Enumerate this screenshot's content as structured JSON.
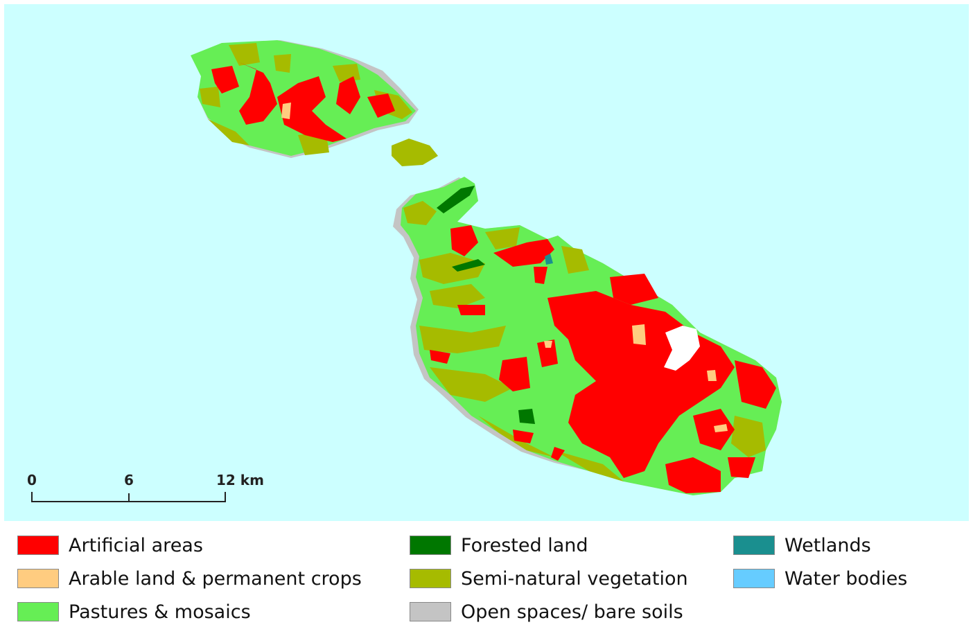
{
  "scale": {
    "ticks": [
      "0",
      "6",
      "12 km"
    ]
  },
  "legend": [
    {
      "label": "Artificial areas",
      "color": "#ff0000"
    },
    {
      "label": "Arable land & permanent crops",
      "color": "#ffcc80"
    },
    {
      "label": "Pastures & mosaics",
      "color": "#66ee55"
    },
    {
      "label": "Forested land",
      "color": "#007700"
    },
    {
      "label": "Semi-natural vegetation",
      "color": "#a6bb00"
    },
    {
      "label": "Open spaces/ bare soils",
      "color": "#c4c4c4"
    },
    {
      "label": "Wetlands",
      "color": "#1a8f8f"
    },
    {
      "label": "Water bodies",
      "color": "#66ccff"
    }
  ]
}
